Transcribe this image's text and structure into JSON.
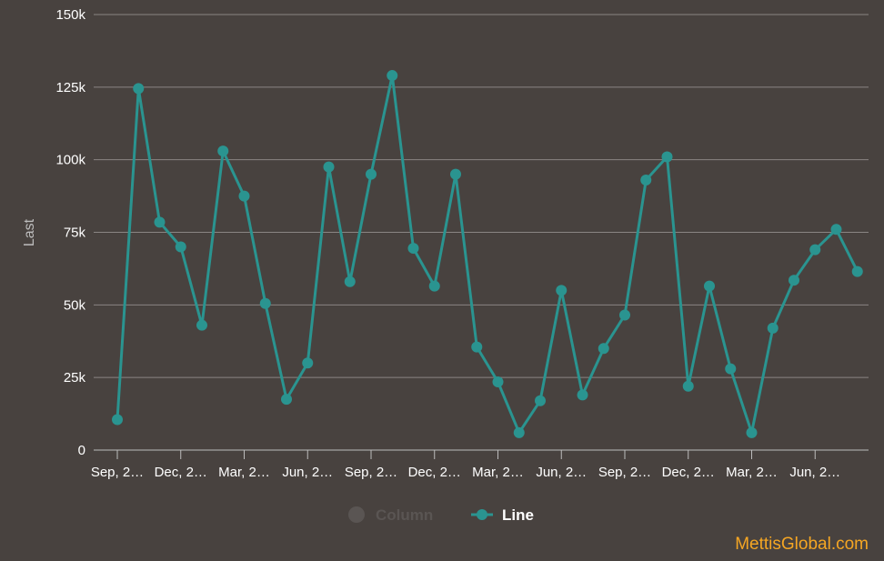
{
  "chart_data": {
    "type": "line",
    "title": "",
    "xlabel": "",
    "ylabel": "Last",
    "ylim": [
      0,
      150000
    ],
    "y_ticks": [
      {
        "value": 0,
        "label": "0"
      },
      {
        "value": 25000,
        "label": "25k"
      },
      {
        "value": 50000,
        "label": "50k"
      },
      {
        "value": 75000,
        "label": "75k"
      },
      {
        "value": 100000,
        "label": "100k"
      },
      {
        "value": 125000,
        "label": "125k"
      },
      {
        "value": 150000,
        "label": "150k"
      }
    ],
    "x_tick_labels": [
      "Sep, 2…",
      "Dec, 2…",
      "Mar, 2…",
      "Jun, 2…",
      "Sep, 2…",
      "Dec, 2…",
      "Mar, 2…",
      "Jun, 2…",
      "Sep, 2…",
      "Dec, 2…",
      "Mar, 2…",
      "Jun, 2…"
    ],
    "points_per_tick": 3,
    "grid": true,
    "legend_position": "bottom-center",
    "series": [
      {
        "name": "Column",
        "hidden": true,
        "color": "#5a5553",
        "values": []
      },
      {
        "name": "Line",
        "hidden": false,
        "color": "#2a9490",
        "values": [
          10500,
          124500,
          78500,
          70000,
          43000,
          103000,
          87500,
          50500,
          17500,
          30000,
          97500,
          58000,
          95000,
          129000,
          69500,
          56500,
          95000,
          35500,
          23500,
          6000,
          17000,
          55000,
          19000,
          35000,
          46500,
          93000,
          101000,
          22000,
          56500,
          28000,
          6000,
          42000,
          58500,
          69000,
          76000,
          61500
        ]
      }
    ]
  },
  "watermark": "MettisGlobal.com",
  "colors": {
    "background": "#48423f",
    "grid": "#8a8583",
    "axis": "#bdbdbd",
    "line": "#2a9490",
    "legend_hidden": "#5a5553",
    "watermark": "#f5a623"
  }
}
